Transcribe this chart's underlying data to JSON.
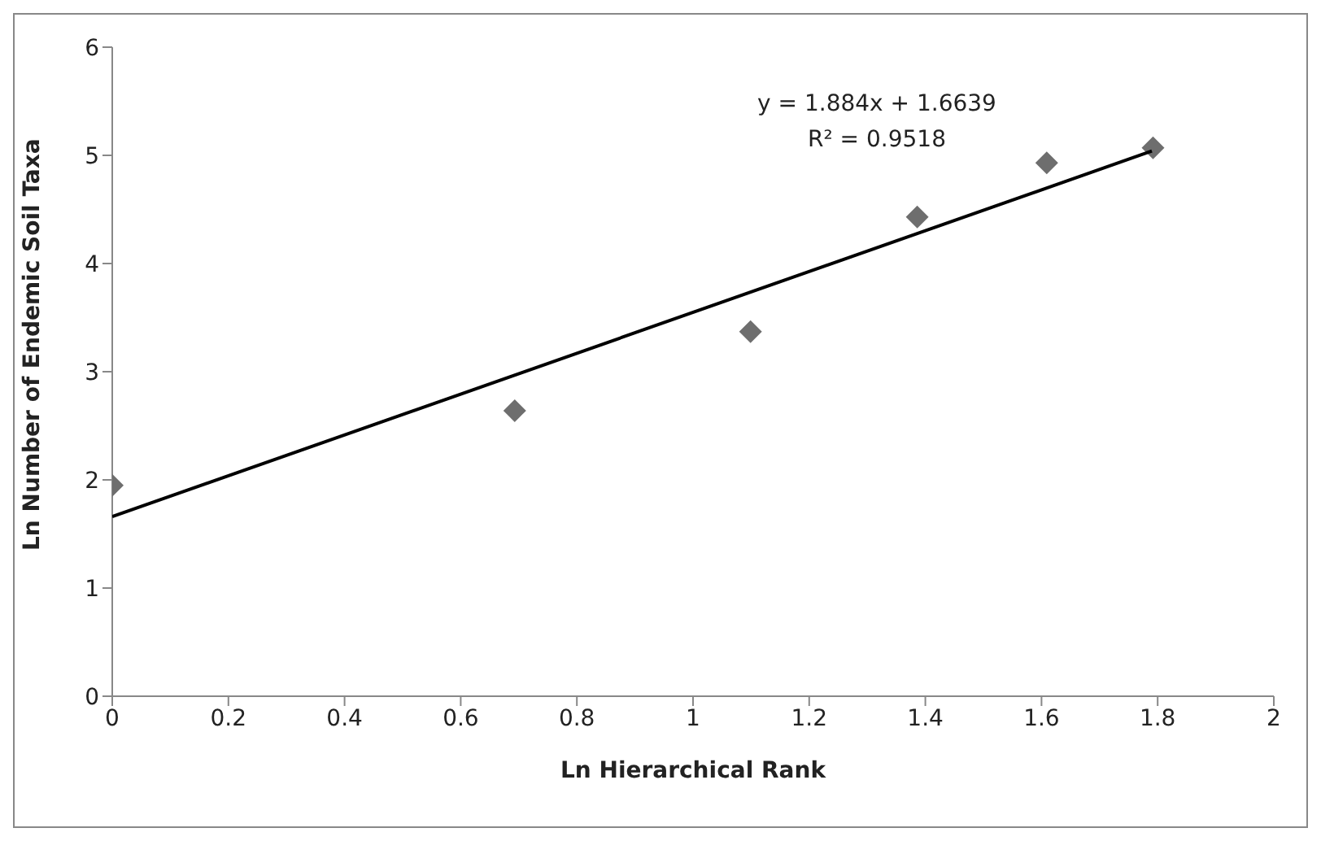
{
  "chart_data": {
    "type": "scatter",
    "xlabel": "Ln Hierarchical Rank",
    "ylabel": "Ln Number of Endemic Soil Taxa",
    "annotations": [
      "y = 1.884x + 1.6639",
      "R² = 0.9518"
    ],
    "series": [
      {
        "color": "#6e6e6e",
        "marker": "diamond",
        "x": [
          0,
          0.693,
          1.099,
          1.386,
          1.609,
          1.792
        ],
        "values": [
          1.95,
          2.64,
          3.37,
          4.43,
          4.93,
          5.07
        ]
      },
      {
        "type": "line",
        "color": "#000000",
        "marker": "none",
        "x": [
          0,
          1.79
        ],
        "values": [
          1.66,
          5.04
        ]
      }
    ],
    "xlim": [
      0,
      2
    ],
    "xticks": [
      0,
      0.2,
      0.4,
      0.6,
      0.8,
      1,
      1.2,
      1.4,
      1.6,
      1.8,
      2
    ],
    "ylim": [
      0,
      6
    ],
    "yticks": [
      0,
      1,
      2,
      3,
      4,
      5,
      6
    ],
    "grid": false
  }
}
